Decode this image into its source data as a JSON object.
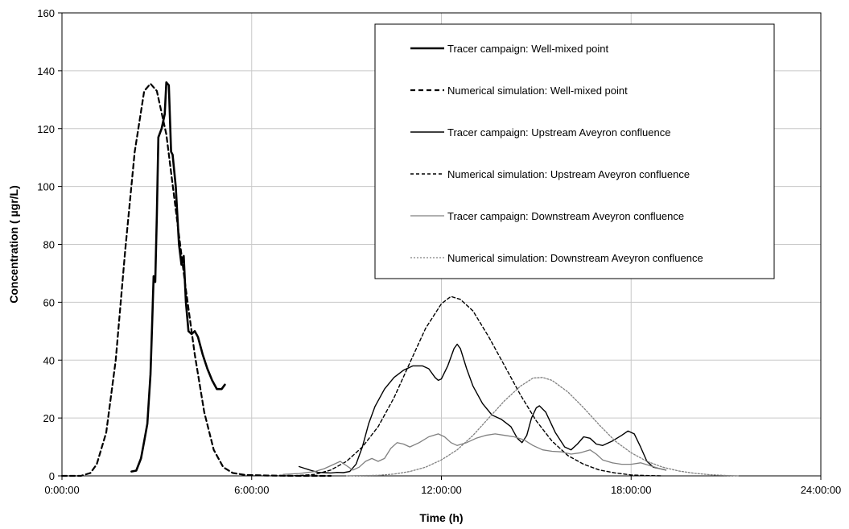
{
  "chart_data": {
    "type": "line",
    "xlabel": "Time (h)",
    "ylabel": "Concentration ( µgr/L)",
    "x_unit": "hours",
    "xlim": [
      0,
      24
    ],
    "ylim": [
      0,
      160
    ],
    "x_ticks": [
      0,
      6,
      12,
      18,
      24
    ],
    "x_tick_labels": [
      "0:00:00",
      "6:00:00",
      "12:00:00",
      "18:00:00",
      "24:00:00"
    ],
    "y_ticks": [
      0,
      20,
      40,
      60,
      80,
      100,
      120,
      140,
      160
    ],
    "grid": "vertical and horizontal at major ticks",
    "legend_position": "top-right",
    "series": [
      {
        "name": "Tracer campaign: Well-mixed point",
        "color": "#000000",
        "style": "solid-thick",
        "points": [
          [
            2.2,
            1.5
          ],
          [
            2.35,
            1.8
          ],
          [
            2.5,
            6
          ],
          [
            2.6,
            12
          ],
          [
            2.7,
            18
          ],
          [
            2.8,
            35
          ],
          [
            2.85,
            52
          ],
          [
            2.9,
            69
          ],
          [
            2.95,
            67
          ],
          [
            3.0,
            90
          ],
          [
            3.05,
            117
          ],
          [
            3.15,
            120
          ],
          [
            3.25,
            125
          ],
          [
            3.3,
            136
          ],
          [
            3.38,
            135
          ],
          [
            3.45,
            112
          ],
          [
            3.5,
            111
          ],
          [
            3.6,
            100
          ],
          [
            3.7,
            80
          ],
          [
            3.78,
            73
          ],
          [
            3.85,
            76
          ],
          [
            3.92,
            60
          ],
          [
            4.0,
            50
          ],
          [
            4.1,
            49
          ],
          [
            4.2,
            50
          ],
          [
            4.3,
            48
          ],
          [
            4.45,
            42
          ],
          [
            4.6,
            37
          ],
          [
            4.75,
            33
          ],
          [
            4.9,
            30
          ],
          [
            5.05,
            30
          ],
          [
            5.15,
            31.5
          ]
        ]
      },
      {
        "name": "Numerical simulation: Well-mixed point",
        "color": "#000000",
        "style": "dashed-thick",
        "points": [
          [
            0,
            0
          ],
          [
            0.6,
            0
          ],
          [
            0.9,
            1
          ],
          [
            1.1,
            4
          ],
          [
            1.4,
            15
          ],
          [
            1.7,
            40
          ],
          [
            2.0,
            78
          ],
          [
            2.3,
            112
          ],
          [
            2.6,
            133
          ],
          [
            2.8,
            135.5
          ],
          [
            3.0,
            133
          ],
          [
            3.3,
            118
          ],
          [
            3.6,
            92
          ],
          [
            3.9,
            66
          ],
          [
            4.2,
            42
          ],
          [
            4.5,
            22
          ],
          [
            4.8,
            9
          ],
          [
            5.1,
            3
          ],
          [
            5.4,
            1
          ],
          [
            5.8,
            0.3
          ],
          [
            6.5,
            0.1
          ],
          [
            7.5,
            0
          ],
          [
            8.5,
            0
          ]
        ]
      },
      {
        "name": "Tracer campaign: Upstream Aveyron confluence",
        "color": "#000000",
        "style": "solid",
        "points": [
          [
            7.5,
            3.2
          ],
          [
            7.7,
            2.5
          ],
          [
            7.9,
            1.8
          ],
          [
            8.1,
            1.2
          ],
          [
            8.3,
            1.1
          ],
          [
            8.5,
            1.0
          ],
          [
            8.7,
            1.2
          ],
          [
            8.9,
            1.1
          ],
          [
            9.1,
            1.5
          ],
          [
            9.3,
            4
          ],
          [
            9.5,
            10
          ],
          [
            9.7,
            18
          ],
          [
            9.9,
            24
          ],
          [
            10.2,
            30
          ],
          [
            10.5,
            34
          ],
          [
            10.8,
            36.5
          ],
          [
            11.1,
            38
          ],
          [
            11.4,
            38
          ],
          [
            11.6,
            37
          ],
          [
            11.8,
            34
          ],
          [
            11.9,
            33
          ],
          [
            12.0,
            33.5
          ],
          [
            12.2,
            38
          ],
          [
            12.4,
            44
          ],
          [
            12.5,
            45.5
          ],
          [
            12.6,
            44
          ],
          [
            12.8,
            37
          ],
          [
            13.0,
            31
          ],
          [
            13.3,
            25
          ],
          [
            13.6,
            21
          ],
          [
            13.9,
            19.5
          ],
          [
            14.2,
            17
          ],
          [
            14.4,
            13
          ],
          [
            14.55,
            11.5
          ],
          [
            14.7,
            14
          ],
          [
            14.85,
            20
          ],
          [
            15.0,
            23.5
          ],
          [
            15.1,
            24.2
          ],
          [
            15.3,
            22
          ],
          [
            15.6,
            15
          ],
          [
            15.9,
            10
          ],
          [
            16.1,
            9
          ],
          [
            16.3,
            11
          ],
          [
            16.5,
            13.5
          ],
          [
            16.7,
            13
          ],
          [
            16.9,
            11
          ],
          [
            17.1,
            10.5
          ],
          [
            17.4,
            12
          ],
          [
            17.7,
            14
          ],
          [
            17.9,
            15.5
          ],
          [
            18.1,
            14.5
          ],
          [
            18.3,
            10
          ],
          [
            18.5,
            5
          ],
          [
            18.7,
            3
          ],
          [
            18.9,
            2.5
          ],
          [
            19.1,
            2
          ]
        ]
      },
      {
        "name": "Numerical simulation: Upstream Aveyron confluence",
        "color": "#000000",
        "style": "dashed",
        "points": [
          [
            7.0,
            0
          ],
          [
            7.5,
            0.1
          ],
          [
            8.0,
            0.5
          ],
          [
            8.5,
            2
          ],
          [
            9.0,
            5
          ],
          [
            9.5,
            10
          ],
          [
            10.0,
            17
          ],
          [
            10.5,
            27
          ],
          [
            11.0,
            39
          ],
          [
            11.5,
            51
          ],
          [
            12.0,
            59.5
          ],
          [
            12.3,
            62
          ],
          [
            12.6,
            61
          ],
          [
            13.0,
            57
          ],
          [
            13.5,
            48
          ],
          [
            14.0,
            38
          ],
          [
            14.5,
            28
          ],
          [
            15.0,
            19
          ],
          [
            15.5,
            12
          ],
          [
            16.0,
            7
          ],
          [
            16.5,
            4
          ],
          [
            17.0,
            2
          ],
          [
            17.5,
            1
          ],
          [
            18.0,
            0.3
          ],
          [
            18.5,
            0.1
          ],
          [
            19.0,
            0
          ]
        ]
      },
      {
        "name": "Tracer campaign: Downstream Aveyron confluence",
        "color": "#808080",
        "style": "solid-light",
        "points": [
          [
            7.0,
            0.5
          ],
          [
            7.5,
            0.8
          ],
          [
            8.0,
            1.5
          ],
          [
            8.3,
            2.5
          ],
          [
            8.6,
            4
          ],
          [
            8.8,
            5
          ],
          [
            9.0,
            3.5
          ],
          [
            9.2,
            2
          ],
          [
            9.4,
            3
          ],
          [
            9.6,
            5
          ],
          [
            9.8,
            6
          ],
          [
            10.0,
            5
          ],
          [
            10.2,
            6
          ],
          [
            10.4,
            9.5
          ],
          [
            10.6,
            11.5
          ],
          [
            10.8,
            11
          ],
          [
            11.0,
            10
          ],
          [
            11.3,
            11.5
          ],
          [
            11.6,
            13.5
          ],
          [
            11.9,
            14.5
          ],
          [
            12.1,
            13.5
          ],
          [
            12.3,
            11.5
          ],
          [
            12.5,
            10.5
          ],
          [
            12.8,
            11.5
          ],
          [
            13.1,
            13
          ],
          [
            13.4,
            14
          ],
          [
            13.7,
            14.5
          ],
          [
            14.0,
            14
          ],
          [
            14.3,
            13.5
          ],
          [
            14.6,
            12.5
          ],
          [
            14.9,
            10.5
          ],
          [
            15.2,
            9
          ],
          [
            15.5,
            8.5
          ],
          [
            15.8,
            8.3
          ],
          [
            16.1,
            7.5
          ],
          [
            16.4,
            8
          ],
          [
            16.7,
            9
          ],
          [
            16.9,
            7.5
          ],
          [
            17.1,
            5.5
          ],
          [
            17.4,
            4.5
          ],
          [
            17.7,
            4
          ],
          [
            18.0,
            4
          ],
          [
            18.3,
            4.5
          ],
          [
            18.6,
            3.5
          ],
          [
            18.9,
            2.5
          ],
          [
            19.1,
            2
          ]
        ]
      },
      {
        "name": "Numerical simulation: Downstream Aveyron confluence",
        "color": "#808080",
        "style": "dotted",
        "points": [
          [
            9.0,
            0
          ],
          [
            10.0,
            0.2
          ],
          [
            10.5,
            0.6
          ],
          [
            11.0,
            1.5
          ],
          [
            11.5,
            3
          ],
          [
            12.0,
            5.5
          ],
          [
            12.5,
            9
          ],
          [
            13.0,
            14
          ],
          [
            13.5,
            20
          ],
          [
            14.0,
            26
          ],
          [
            14.5,
            31
          ],
          [
            14.9,
            33.8
          ],
          [
            15.2,
            34
          ],
          [
            15.5,
            33
          ],
          [
            16.0,
            29
          ],
          [
            16.5,
            23.5
          ],
          [
            17.0,
            17.5
          ],
          [
            17.5,
            12
          ],
          [
            18.0,
            8
          ],
          [
            18.5,
            5
          ],
          [
            19.0,
            3
          ],
          [
            19.5,
            1.7
          ],
          [
            20.0,
            0.9
          ],
          [
            20.5,
            0.4
          ],
          [
            21.0,
            0.15
          ],
          [
            21.4,
            0
          ]
        ]
      }
    ]
  }
}
